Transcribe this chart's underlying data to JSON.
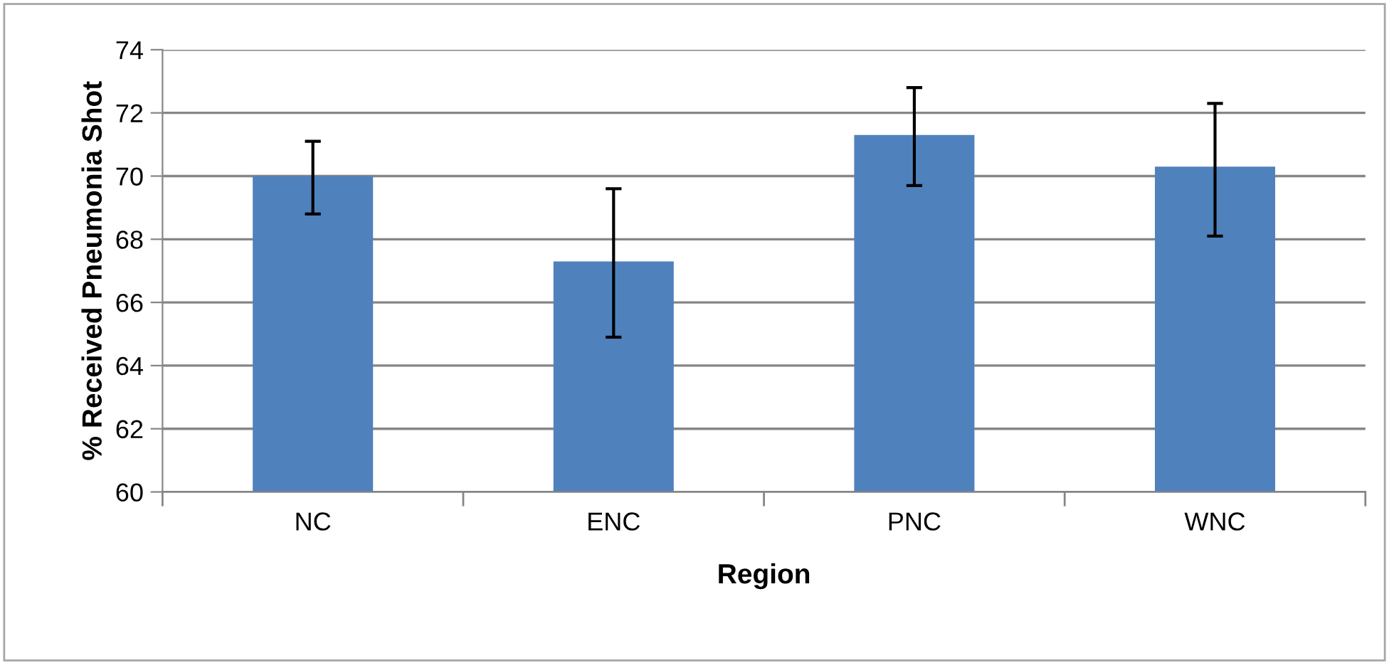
{
  "chart_data": {
    "type": "bar",
    "xlabel": "Region",
    "ylabel": "% Received Pneumonia Shot",
    "categories": [
      "NC",
      "ENC",
      "PNC",
      "WNC"
    ],
    "values": [
      70.0,
      67.3,
      71.3,
      70.3
    ],
    "errors": [
      [
        68.8,
        71.1
      ],
      [
        64.9,
        69.6
      ],
      [
        69.7,
        72.8
      ],
      [
        68.1,
        72.3
      ]
    ],
    "color": "#4f81bd",
    "ylim": [
      60,
      74
    ],
    "yticks": [
      60,
      62,
      64,
      66,
      68,
      70,
      72,
      74
    ],
    "grid": "y"
  }
}
